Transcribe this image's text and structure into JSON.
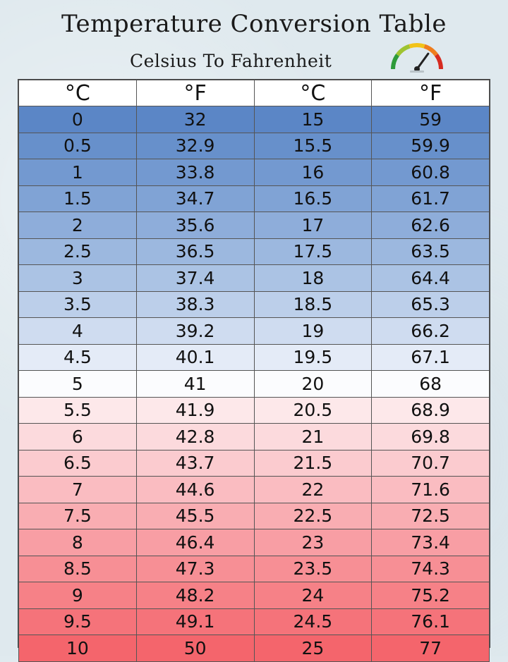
{
  "title": "Temperature Conversion Table",
  "subtitle": "Celsius To Fahrenheit",
  "headers": [
    "°C",
    "°F",
    "°C",
    "°F"
  ],
  "rows": [
    {
      "c1": "0",
      "f1": "32",
      "c2": "15",
      "f2": "59",
      "color": "#5b86c6"
    },
    {
      "c1": "0.5",
      "f1": "32.9",
      "c2": "15.5",
      "f2": "59.9",
      "color": "#6790cb"
    },
    {
      "c1": "1",
      "f1": "33.8",
      "c2": "16",
      "f2": "60.8",
      "color": "#7399d0"
    },
    {
      "c1": "1.5",
      "f1": "34.7",
      "c2": "16.5",
      "f2": "61.7",
      "color": "#80a3d5"
    },
    {
      "c1": "2",
      "f1": "35.6",
      "c2": "17",
      "f2": "62.6",
      "color": "#8eadda"
    },
    {
      "c1": "2.5",
      "f1": "36.5",
      "c2": "17.5",
      "f2": "63.5",
      "color": "#9cb8df"
    },
    {
      "c1": "3",
      "f1": "37.4",
      "c2": "18",
      "f2": "64.4",
      "color": "#abc3e4"
    },
    {
      "c1": "3.5",
      "f1": "38.3",
      "c2": "18.5",
      "f2": "65.3",
      "color": "#bccfea"
    },
    {
      "c1": "4",
      "f1": "39.2",
      "c2": "19",
      "f2": "66.2",
      "color": "#cfdcf0"
    },
    {
      "c1": "4.5",
      "f1": "40.1",
      "c2": "19.5",
      "f2": "67.1",
      "color": "#e4ebf7"
    },
    {
      "c1": "5",
      "f1": "41",
      "c2": "20",
      "f2": "68",
      "color": "#fbfcfe"
    },
    {
      "c1": "5.5",
      "f1": "41.9",
      "c2": "20.5",
      "f2": "68.9",
      "color": "#fde8ea"
    },
    {
      "c1": "6",
      "f1": "42.8",
      "c2": "21",
      "f2": "69.8",
      "color": "#fcdadd"
    },
    {
      "c1": "6.5",
      "f1": "43.7",
      "c2": "21.5",
      "f2": "70.7",
      "color": "#fbcbcf"
    },
    {
      "c1": "7",
      "f1": "44.6",
      "c2": "22",
      "f2": "71.6",
      "color": "#fabcc1"
    },
    {
      "c1": "7.5",
      "f1": "45.5",
      "c2": "22.5",
      "f2": "72.5",
      "color": "#f9adb2"
    },
    {
      "c1": "8",
      "f1": "46.4",
      "c2": "23",
      "f2": "73.4",
      "color": "#f89ea4"
    },
    {
      "c1": "8.5",
      "f1": "47.3",
      "c2": "23.5",
      "f2": "74.3",
      "color": "#f78f95"
    },
    {
      "c1": "9",
      "f1": "48.2",
      "c2": "24",
      "f2": "75.2",
      "color": "#f68187"
    },
    {
      "c1": "9.5",
      "f1": "49.1",
      "c2": "24.5",
      "f2": "76.1",
      "color": "#f5737a"
    },
    {
      "c1": "10",
      "f1": "50",
      "c2": "25",
      "f2": "77",
      "color": "#f4656c"
    }
  ],
  "gauge": {
    "icon": "thermometer-gauge-icon",
    "arc_colors": [
      "#2e9b3a",
      "#9fc431",
      "#f2c318",
      "#ef7d1d",
      "#d62b20"
    ],
    "level": 0.7
  }
}
